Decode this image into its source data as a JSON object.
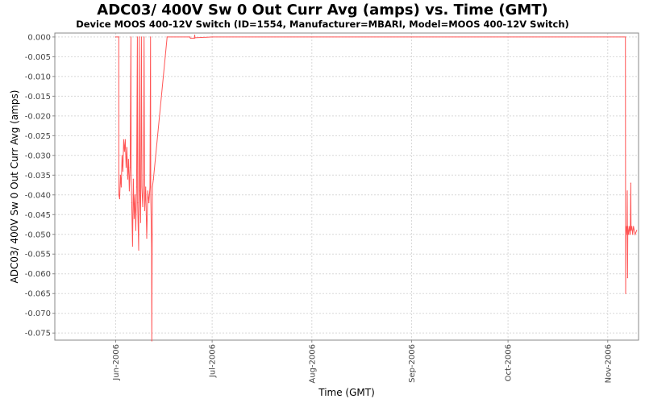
{
  "chart_data": {
    "type": "line",
    "title": "ADC03/ 400V Sw 0 Out Curr Avg (amps) vs. Time (GMT)",
    "subtitle": "Device MOOS 400-12V Switch (ID=1554, Manufacturer=MBARI, Model=MOOS 400-12V Switch)",
    "xlabel": "Time (GMT)",
    "ylabel": "ADC03/ 400V Sw 0 Out Curr Avg (amps)",
    "xlim": [
      "2006-05-13 02:00",
      "2006-11-10 14:00"
    ],
    "ylim": [
      -0.0768,
      0.001
    ],
    "grid": true,
    "x_ticks": [
      {
        "date": "2006-06-01 00:00",
        "label": "Jun-2006"
      },
      {
        "date": "2006-07-01 00:00",
        "label": "Jul-2006"
      },
      {
        "date": "2006-08-01 00:00",
        "label": "Aug-2006"
      },
      {
        "date": "2006-09-01 00:00",
        "label": "Sep-2006"
      },
      {
        "date": "2006-10-01 00:00",
        "label": "Oct-2006"
      },
      {
        "date": "2006-11-01 00:00",
        "label": "Nov-2006"
      }
    ],
    "y_ticks": [
      0.0,
      -0.005,
      -0.01,
      -0.015,
      -0.02,
      -0.025,
      -0.03,
      -0.035,
      -0.04,
      -0.045,
      -0.05,
      -0.055,
      -0.06,
      -0.065,
      -0.07,
      -0.075
    ],
    "series": [
      {
        "name": "ADC03/ 400V Sw 0 Out Curr Avg",
        "color": "#ff5555",
        "points": [
          [
            "2006-06-01 00:00",
            0
          ],
          [
            "2006-06-01 23:00",
            0
          ],
          [
            "2006-06-02 00:00",
            -0.04
          ],
          [
            "2006-06-02 06:00",
            -0.041
          ],
          [
            "2006-06-02 12:00",
            -0.035
          ],
          [
            "2006-06-02 18:00",
            -0.038
          ],
          [
            "2006-06-03 00:00",
            -0.03
          ],
          [
            "2006-06-03 06:00",
            -0.034
          ],
          [
            "2006-06-03 12:00",
            -0.026
          ],
          [
            "2006-06-03 18:00",
            -0.029
          ],
          [
            "2006-06-04 00:00",
            -0.026
          ],
          [
            "2006-06-04 06:00",
            -0.033
          ],
          [
            "2006-06-04 12:00",
            -0.028
          ],
          [
            "2006-06-04 18:00",
            -0.036
          ],
          [
            "2006-06-05 00:00",
            -0.031
          ],
          [
            "2006-06-05 06:00",
            -0.039
          ],
          [
            "2006-06-05 12:00",
            -0.033
          ],
          [
            "2006-06-05 18:00",
            0
          ],
          [
            "2006-06-05 20:00",
            -0.035
          ],
          [
            "2006-06-06 00:00",
            -0.042
          ],
          [
            "2006-06-06 06:00",
            -0.053
          ],
          [
            "2006-06-06 12:00",
            -0.036
          ],
          [
            "2006-06-06 18:00",
            -0.046
          ],
          [
            "2006-06-07 00:00",
            -0.04
          ],
          [
            "2006-06-07 06:00",
            -0.049
          ],
          [
            "2006-06-07 12:00",
            -0.038
          ],
          [
            "2006-06-07 18:00",
            0
          ],
          [
            "2006-06-07 20:00",
            -0.042
          ],
          [
            "2006-06-08 04:00",
            -0.054
          ],
          [
            "2006-06-08 08:00",
            0
          ],
          [
            "2006-06-08 12:00",
            -0.039
          ],
          [
            "2006-06-08 18:00",
            -0.047
          ],
          [
            "2006-06-09 00:00",
            0
          ],
          [
            "2006-06-09 04:00",
            -0.038
          ],
          [
            "2006-06-09 10:00",
            -0.043
          ],
          [
            "2006-06-09 16:00",
            -0.036
          ],
          [
            "2006-06-09 20:00",
            0
          ],
          [
            "2006-06-10 00:00",
            -0.044
          ],
          [
            "2006-06-10 08:00",
            -0.038
          ],
          [
            "2006-06-10 16:00",
            -0.051
          ],
          [
            "2006-06-11 00:00",
            -0.039
          ],
          [
            "2006-06-11 08:00",
            -0.042
          ],
          [
            "2006-06-11 16:00",
            -0.038
          ],
          [
            "2006-06-11 20:00",
            0
          ],
          [
            "2006-06-11 22:00",
            -0.04
          ],
          [
            "2006-06-12 04:00",
            -0.053
          ],
          [
            "2006-06-12 06:00",
            -0.077
          ],
          [
            "2006-06-12 10:00",
            -0.038
          ],
          [
            "2006-06-12 18:00",
            -0.036
          ],
          [
            "2006-06-17 00:00",
            0
          ],
          [
            "2006-06-24 00:00",
            0
          ],
          [
            "2006-06-24 06:00",
            -0.0003
          ],
          [
            "2006-06-25 12:00",
            -0.0003
          ],
          [
            "2006-06-25 14:00",
            0.0005
          ],
          [
            "2006-06-25 16:00",
            -0.0002
          ],
          [
            "2006-07-01 00:00",
            0
          ],
          [
            "2006-11-06 12:00",
            0
          ],
          [
            "2006-11-06 14:00",
            -0.065
          ],
          [
            "2006-11-06 16:00",
            -0.049
          ],
          [
            "2006-11-06 20:00",
            -0.048
          ],
          [
            "2006-11-07 00:00",
            -0.05
          ],
          [
            "2006-11-07 02:00",
            -0.039
          ],
          [
            "2006-11-07 04:00",
            -0.061
          ],
          [
            "2006-11-07 06:00",
            -0.048
          ],
          [
            "2006-11-07 12:00",
            -0.05
          ],
          [
            "2006-11-07 18:00",
            -0.048
          ],
          [
            "2006-11-08 00:00",
            -0.05
          ],
          [
            "2006-11-08 04:00",
            -0.037
          ],
          [
            "2006-11-08 06:00",
            -0.049
          ],
          [
            "2006-11-08 12:00",
            -0.048
          ],
          [
            "2006-11-08 18:00",
            -0.05
          ],
          [
            "2006-11-09 00:00",
            -0.048
          ],
          [
            "2006-11-09 12:00",
            -0.05
          ],
          [
            "2006-11-10 00:00",
            -0.049
          ]
        ]
      }
    ]
  }
}
